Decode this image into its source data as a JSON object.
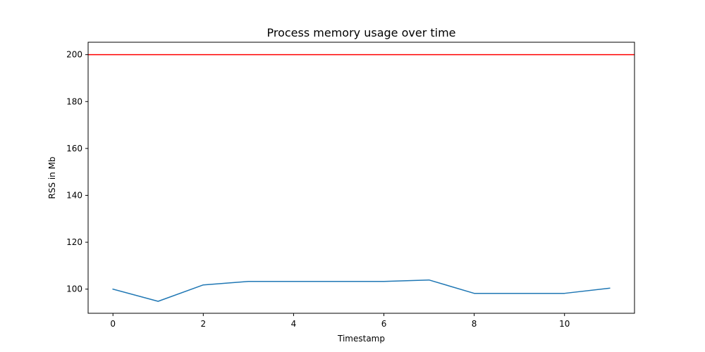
{
  "chart_data": {
    "type": "line",
    "title": "Process memory usage over time",
    "xlabel": "Timestamp",
    "ylabel": "RSS in Mb",
    "xlim": [
      -0.55,
      11.55
    ],
    "ylim": [
      89.7,
      205.3
    ],
    "x_ticks": [
      0,
      2,
      4,
      6,
      8,
      10
    ],
    "y_ticks": [
      100,
      120,
      140,
      160,
      180,
      200
    ],
    "grid": false,
    "series": [
      {
        "x": [
          0,
          1,
          2,
          3,
          4,
          5,
          6,
          7,
          8,
          9,
          10,
          11
        ],
        "values": [
          100.0,
          94.8,
          101.8,
          103.3,
          103.3,
          103.3,
          103.3,
          103.9,
          98.2,
          98.2,
          98.2,
          100.4
        ],
        "color": "#1f77b4"
      }
    ],
    "hlines": [
      {
        "y": 200,
        "color": "#ff0000"
      }
    ]
  }
}
